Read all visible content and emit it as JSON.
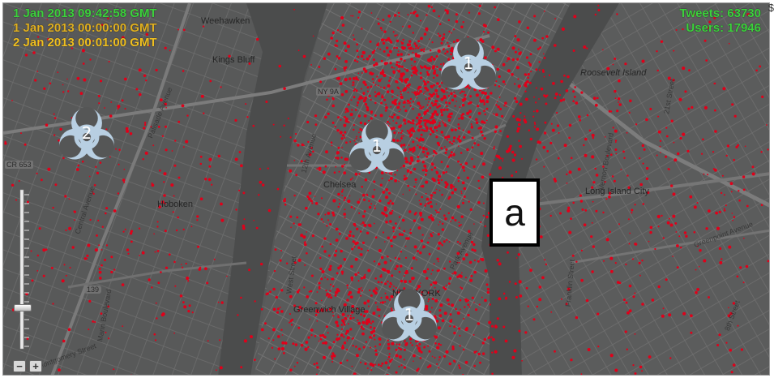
{
  "timestamps": [
    {
      "text": "1 Jan 2013 09:42:58 GMT",
      "color": "#3cd13c"
    },
    {
      "text": "1 Jan 2013 00:00:00 GMT",
      "color": "#e0b020"
    },
    {
      "text": "2 Jan 2013 00:01:00 GMT",
      "color": "#f0c020"
    }
  ],
  "stats": {
    "tweets": "Tweets: 63730",
    "users": "Users: 17946",
    "color": "#3cd13c"
  },
  "place_labels": [
    {
      "text": "Weehawken"
    },
    {
      "text": "Kings Bluff"
    },
    {
      "text": "Hoboken"
    },
    {
      "text": "Chelsea"
    },
    {
      "text": "NEW YORK"
    },
    {
      "text": "Greenwich Village"
    },
    {
      "text": "Long Island City"
    },
    {
      "text": "Roosevelt Island"
    }
  ],
  "street_labels": [
    {
      "text": "12th Avenue"
    },
    {
      "text": "West Street"
    },
    {
      "text": "Palisade Avenue"
    },
    {
      "text": "Central Avenue"
    },
    {
      "text": "Park Avenue"
    },
    {
      "text": "Vernon Boulevard"
    },
    {
      "text": "21st Street"
    },
    {
      "text": "Franklin Street"
    },
    {
      "text": "Montgomery Street"
    },
    {
      "text": "Marin Boulevard"
    },
    {
      "text": "Greenpoint Avenue"
    },
    {
      "text": "8th Street"
    }
  ],
  "road_shields": [
    "NY 9A",
    "CR 653",
    "139"
  ],
  "hazards": [
    {
      "number": "1",
      "icon": "biohazard-icon"
    },
    {
      "number": "1",
      "icon": "biohazard-icon"
    },
    {
      "number": "1",
      "icon": "biohazard-icon"
    },
    {
      "number": "2",
      "icon": "biohazard-icon"
    }
  ],
  "annotation_label": "a",
  "zoom": {
    "plus": "+",
    "minus": "−",
    "level_fraction": 0.26
  },
  "colors": {
    "map_background": "#555656",
    "water": "#4a4b4b",
    "road": "#6c6c6c",
    "tweet_dot": "#e0001a",
    "hazard": "#b8cfe2"
  },
  "edge_mark": "$"
}
